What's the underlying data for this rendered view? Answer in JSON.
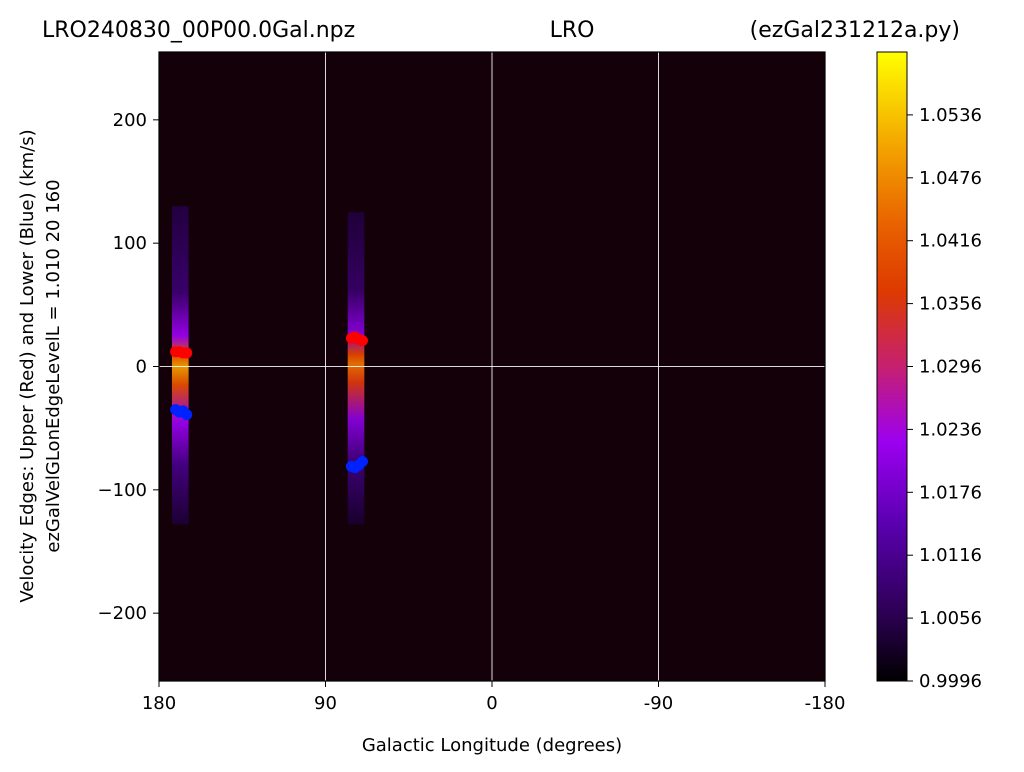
{
  "chart_data": {
    "type": "heatmap",
    "title_left": "LRO240830_00P00.0Gal.npz",
    "title_center": "LRO",
    "title_right": "(ezGal231212a.py)",
    "xlabel": "Galactic Longitude (degrees)",
    "ylabel_line1": "Velocity Edges: Upper (Red) and Lower (Blue) (km/s)",
    "ylabel_line2": "ezGalVelGLonEdgeLevelL = 1.010  20  160",
    "xlim": [
      180,
      -180
    ],
    "ylim": [
      -255,
      255
    ],
    "x_ticks": [
      180,
      90,
      0,
      -90,
      -180
    ],
    "x_tick_labels": [
      "180",
      "90",
      "0",
      "-90",
      "-180"
    ],
    "y_ticks": [
      200,
      100,
      0,
      -100,
      -200
    ],
    "y_tick_labels": [
      "200",
      "100",
      "0",
      "−100",
      "−200"
    ],
    "grid": true,
    "colormap": "gnuplot",
    "background_color": "#140008",
    "colorbar": {
      "min": 0.9996,
      "max": 1.0596,
      "ticks": [
        1.0536,
        1.0476,
        1.0416,
        1.0356,
        1.0296,
        1.0236,
        1.0176,
        1.0116,
        1.0056,
        0.9996
      ],
      "tick_labels": [
        "1.0536",
        "1.0476",
        "1.0416",
        "1.0356",
        "1.0296",
        "1.0236",
        "1.0176",
        "1.0116",
        "1.0056",
        "0.9996"
      ]
    },
    "emission": [
      {
        "x_min": 173,
        "x_max": 164,
        "y_min": -128,
        "y_max": 130,
        "peak": 1.05,
        "peak_v": 0
      },
      {
        "x_min": 78,
        "x_max": 69,
        "y_min": -128,
        "y_max": 125,
        "peak": 1.045,
        "peak_v": 2
      }
    ],
    "series": [
      {
        "name": "Upper (Red)",
        "color": "#ff0000",
        "points": [
          [
            171,
            12
          ],
          [
            169,
            12
          ],
          [
            167,
            11
          ],
          [
            165,
            11
          ],
          [
            76,
            23
          ],
          [
            74,
            24
          ],
          [
            72,
            22
          ],
          [
            70,
            21
          ]
        ]
      },
      {
        "name": "Lower (Blue)",
        "color": "#0022ff",
        "points": [
          [
            171,
            -35
          ],
          [
            169,
            -37
          ],
          [
            167,
            -36
          ],
          [
            165,
            -39
          ],
          [
            76,
            -81
          ],
          [
            74,
            -82
          ],
          [
            72,
            -80
          ],
          [
            70,
            -77
          ]
        ]
      }
    ]
  }
}
